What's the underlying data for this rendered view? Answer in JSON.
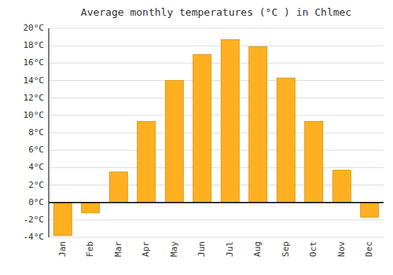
{
  "chart_data": {
    "type": "bar",
    "title": "Average monthly temperatures (°C ) in Chlmec",
    "categories": [
      "Jan",
      "Feb",
      "Mar",
      "Apr",
      "May",
      "Jun",
      "Jul",
      "Aug",
      "Sep",
      "Oct",
      "Nov",
      "Dec"
    ],
    "values": [
      -3.8,
      -1.2,
      3.5,
      9.3,
      14.0,
      17.0,
      18.7,
      17.9,
      14.3,
      9.3,
      3.7,
      -1.7
    ],
    "color": "#FFB020",
    "ylim": [
      -4,
      20
    ],
    "yticks": [
      {
        "value": -4,
        "label": "-4°C"
      },
      {
        "value": -2,
        "label": "-2°C"
      },
      {
        "value": 0,
        "label": "0°C"
      },
      {
        "value": 2,
        "label": "2°C"
      },
      {
        "value": 4,
        "label": "4°C"
      },
      {
        "value": 6,
        "label": "6°C"
      },
      {
        "value": 8,
        "label": "8°C"
      },
      {
        "value": 10,
        "label": "10°C"
      },
      {
        "value": 12,
        "label": "12°C"
      },
      {
        "value": 14,
        "label": "14°C"
      },
      {
        "value": 16,
        "label": "16°C"
      },
      {
        "value": 18,
        "label": "18°C"
      },
      {
        "value": 20,
        "label": "20°C"
      }
    ],
    "grid": true
  }
}
